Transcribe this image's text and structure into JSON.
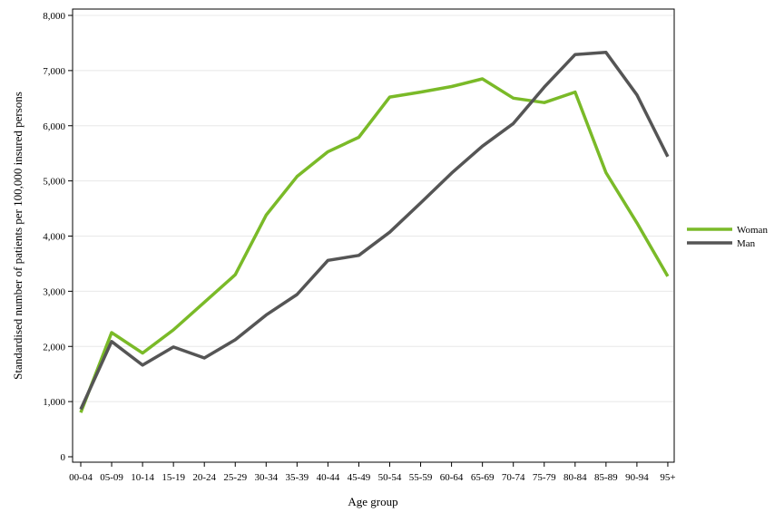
{
  "chart_data": {
    "type": "line",
    "title": "",
    "xlabel": "Age group",
    "ylabel": "Standardised number of patients per 100,000 insured persons",
    "categories": [
      "00-04",
      "05-09",
      "10-14",
      "15-19",
      "20-24",
      "25-29",
      "30-34",
      "35-39",
      "40-44",
      "45-49",
      "50-54",
      "55-59",
      "60-64",
      "65-69",
      "70-74",
      "75-79",
      "80-84",
      "85-89",
      "90-94",
      "95+"
    ],
    "ylim": [
      0,
      8000
    ],
    "yticks": [
      0,
      1000,
      2000,
      3000,
      4000,
      5000,
      6000,
      7000,
      8000
    ],
    "ytick_labels": [
      "0",
      "1,000",
      "2,000",
      "3,000",
      "4,000",
      "5,000",
      "6,000",
      "7,000",
      "8,000"
    ],
    "grid": true,
    "legend_position": "right",
    "series": [
      {
        "name": "Woman",
        "color": "#7aba28",
        "values": [
          800,
          2250,
          1880,
          2300,
          2800,
          3300,
          4380,
          5080,
          5530,
          5790,
          6520,
          6610,
          6710,
          6850,
          6500,
          6420,
          6610,
          5150,
          4240,
          3270
        ]
      },
      {
        "name": "Man",
        "color": "#555555",
        "values": [
          860,
          2090,
          1660,
          1990,
          1790,
          2120,
          2570,
          2940,
          3560,
          3650,
          4070,
          4600,
          5140,
          5630,
          6040,
          6700,
          7290,
          7330,
          6560,
          5440
        ]
      }
    ]
  }
}
